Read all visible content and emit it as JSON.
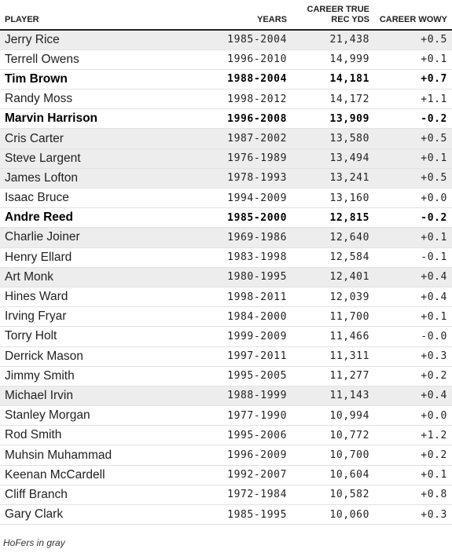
{
  "headers": {
    "player": "PLAYER",
    "years": "YEARS",
    "yds": "CAREER TRUE REC YDS",
    "wowy": "CAREER WOWY"
  },
  "rows": [
    {
      "player": "Jerry Rice",
      "years": "1985-2004",
      "yds": "21,438",
      "wowy": "+0.5",
      "hof": true,
      "bold": false
    },
    {
      "player": "Terrell Owens",
      "years": "1996-2010",
      "yds": "14,999",
      "wowy": "+0.1",
      "hof": false,
      "bold": false
    },
    {
      "player": "Tim Brown",
      "years": "1988-2004",
      "yds": "14,181",
      "wowy": "+0.7",
      "hof": false,
      "bold": true
    },
    {
      "player": "Randy Moss",
      "years": "1998-2012",
      "yds": "14,172",
      "wowy": "+1.1",
      "hof": false,
      "bold": false
    },
    {
      "player": "Marvin Harrison",
      "years": "1996-2008",
      "yds": "13,909",
      "wowy": "-0.2",
      "hof": false,
      "bold": true
    },
    {
      "player": "Cris Carter",
      "years": "1987-2002",
      "yds": "13,580",
      "wowy": "+0.5",
      "hof": true,
      "bold": false
    },
    {
      "player": "Steve Largent",
      "years": "1976-1989",
      "yds": "13,494",
      "wowy": "+0.1",
      "hof": true,
      "bold": false
    },
    {
      "player": "James Lofton",
      "years": "1978-1993",
      "yds": "13,241",
      "wowy": "+0.5",
      "hof": true,
      "bold": false
    },
    {
      "player": "Isaac Bruce",
      "years": "1994-2009",
      "yds": "13,160",
      "wowy": "+0.0",
      "hof": false,
      "bold": false
    },
    {
      "player": "Andre Reed",
      "years": "1985-2000",
      "yds": "12,815",
      "wowy": "-0.2",
      "hof": false,
      "bold": true
    },
    {
      "player": "Charlie Joiner",
      "years": "1969-1986",
      "yds": "12,640",
      "wowy": "+0.1",
      "hof": true,
      "bold": false
    },
    {
      "player": "Henry Ellard",
      "years": "1983-1998",
      "yds": "12,584",
      "wowy": "-0.1",
      "hof": false,
      "bold": false
    },
    {
      "player": "Art Monk",
      "years": "1980-1995",
      "yds": "12,401",
      "wowy": "+0.4",
      "hof": true,
      "bold": false
    },
    {
      "player": "Hines Ward",
      "years": "1998-2011",
      "yds": "12,039",
      "wowy": "+0.4",
      "hof": false,
      "bold": false
    },
    {
      "player": "Irving Fryar",
      "years": "1984-2000",
      "yds": "11,700",
      "wowy": "+0.1",
      "hof": false,
      "bold": false
    },
    {
      "player": "Torry Holt",
      "years": "1999-2009",
      "yds": "11,466",
      "wowy": "-0.0",
      "hof": false,
      "bold": false
    },
    {
      "player": "Derrick Mason",
      "years": "1997-2011",
      "yds": "11,311",
      "wowy": "+0.3",
      "hof": false,
      "bold": false
    },
    {
      "player": "Jimmy Smith",
      "years": "1995-2005",
      "yds": "11,277",
      "wowy": "+0.2",
      "hof": false,
      "bold": false
    },
    {
      "player": "Michael Irvin",
      "years": "1988-1999",
      "yds": "11,143",
      "wowy": "+0.4",
      "hof": true,
      "bold": false
    },
    {
      "player": "Stanley Morgan",
      "years": "1977-1990",
      "yds": "10,994",
      "wowy": "+0.0",
      "hof": false,
      "bold": false
    },
    {
      "player": "Rod Smith",
      "years": "1995-2006",
      "yds": "10,772",
      "wowy": "+1.2",
      "hof": false,
      "bold": false
    },
    {
      "player": "Muhsin Muhammad",
      "years": "1996-2009",
      "yds": "10,700",
      "wowy": "+0.2",
      "hof": false,
      "bold": false
    },
    {
      "player": "Keenan McCardell",
      "years": "1992-2007",
      "yds": "10,604",
      "wowy": "+0.1",
      "hof": false,
      "bold": false
    },
    {
      "player": "Cliff Branch",
      "years": "1972-1984",
      "yds": "10,582",
      "wowy": "+0.8",
      "hof": false,
      "bold": false
    },
    {
      "player": "Gary Clark",
      "years": "1985-1995",
      "yds": "10,060",
      "wowy": "+0.3",
      "hof": false,
      "bold": false
    }
  ],
  "note": "HoFers in gray",
  "colors": {
    "hof_row": "#ededed",
    "header_rule": "#222222",
    "row_rule": "#e2e2e2"
  }
}
